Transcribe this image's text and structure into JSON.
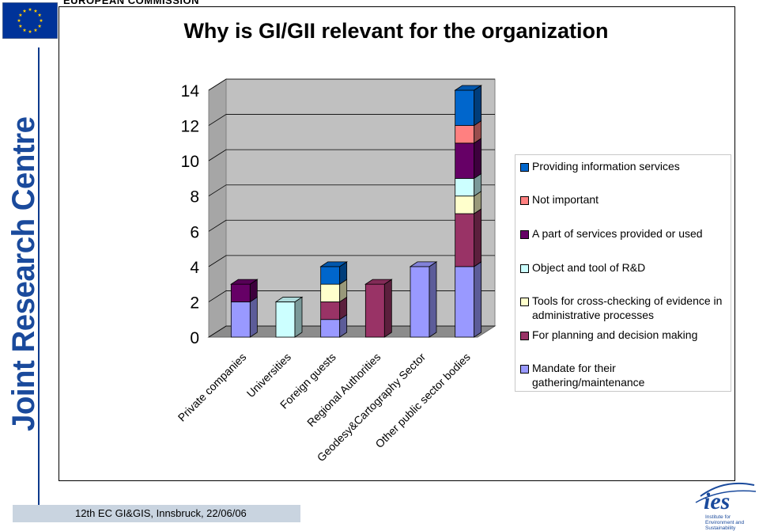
{
  "header": {
    "org_text": "EUROPEAN COMMISSION"
  },
  "sidebar": {
    "vertical_text": "Joint Research Centre"
  },
  "footer": {
    "text": "12th EC GI&GIS, Innsbruck, 22/06/06"
  },
  "logo": {
    "wordmark": "ies",
    "tagline_1": "Institute for",
    "tagline_2": "Environment and",
    "tagline_3": "Sustainability"
  },
  "colors": {
    "Mandate for their gathering/maintenance": "#9999ff",
    "For planning and decision making": "#993366",
    "Tools for cross-checking of evidence in administrative processes": "#ffffcc",
    "Object and tool of R&D": "#ccffff",
    "A part of services provided or used": "#660066",
    "Not important": "#ff8080",
    "Providing information services": "#0066cc"
  },
  "chart_data": {
    "type": "bar",
    "stacked": true,
    "three_d": true,
    "title": "Why is GI/GII relevant for the organization",
    "categories": [
      "Private companies",
      "Universities",
      "Foreign guests",
      "Regional Authorities",
      "Geodesy&Cartography Sector",
      "Other public sector bodies"
    ],
    "ylim": [
      0,
      14
    ],
    "yticks": [
      0,
      2,
      4,
      6,
      8,
      10,
      12,
      14
    ],
    "grid": true,
    "legend_position": "right",
    "series": [
      {
        "name": "Mandate for their gathering/maintenance",
        "values": [
          2,
          0,
          1,
          0,
          4,
          4
        ]
      },
      {
        "name": "For planning and decision making",
        "values": [
          0,
          0,
          1,
          3,
          0,
          3
        ]
      },
      {
        "name": "Tools for cross-checking of evidence in administrative processes",
        "values": [
          0,
          0,
          1,
          0,
          0,
          1
        ]
      },
      {
        "name": "Object and tool of R&D",
        "values": [
          0,
          2,
          0,
          0,
          0,
          1
        ]
      },
      {
        "name": "A part of services provided or used",
        "values": [
          1,
          0,
          0,
          0,
          0,
          2
        ]
      },
      {
        "name": "Not important",
        "values": [
          0,
          0,
          0,
          0,
          0,
          1
        ]
      },
      {
        "name": "Providing information services",
        "values": [
          0,
          0,
          1,
          0,
          0,
          2
        ]
      }
    ],
    "legend_order": [
      "Providing information services",
      "Not important",
      "A part of services provided or used",
      "Object and tool of R&D",
      "Tools for cross-checking of evidence in administrative processes",
      "For planning and decision making",
      "Mandate for their gathering/maintenance"
    ]
  }
}
